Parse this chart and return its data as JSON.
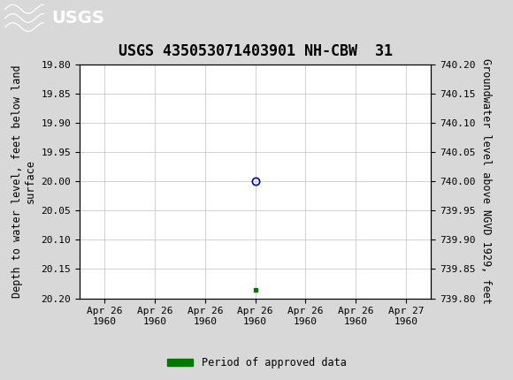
{
  "title": "USGS 435053071403901 NH-CBW  31",
  "xlabel_dates": [
    "Apr 26\n1960",
    "Apr 26\n1960",
    "Apr 26\n1960",
    "Apr 26\n1960",
    "Apr 26\n1960",
    "Apr 26\n1960",
    "Apr 27\n1960"
  ],
  "ylabel_left": "Depth to water level, feet below land\nsurface",
  "ylabel_right": "Groundwater level above NGVD 1929, feet",
  "ylim_left_bottom": 20.2,
  "ylim_left_top": 19.8,
  "ylim_right_bottom": 739.8,
  "ylim_right_top": 740.2,
  "yticks_left": [
    19.8,
    19.85,
    19.9,
    19.95,
    20.0,
    20.05,
    20.1,
    20.15,
    20.2
  ],
  "yticks_right": [
    739.8,
    739.85,
    739.9,
    739.95,
    740.0,
    740.05,
    740.1,
    740.15,
    740.2
  ],
  "data_point_x": 3,
  "data_point_y": 20.0,
  "data_point_color": "#0000bb",
  "approved_x": 3,
  "approved_y": 20.185,
  "approved_color": "#007700",
  "legend_label": "Period of approved data",
  "legend_color": "#007700",
  "header_color": "#1e6b3c",
  "header_text_color": "#ffffff",
  "background_color": "#d8d8d8",
  "plot_bg_color": "#ffffff",
  "grid_color": "#c0c0c0",
  "font_family": "monospace",
  "title_fontsize": 12,
  "axis_label_fontsize": 8.5,
  "tick_fontsize": 8,
  "xtick_positions": [
    0,
    1,
    2,
    3,
    4,
    5,
    6
  ],
  "xlim": [
    -0.5,
    6.5
  ]
}
